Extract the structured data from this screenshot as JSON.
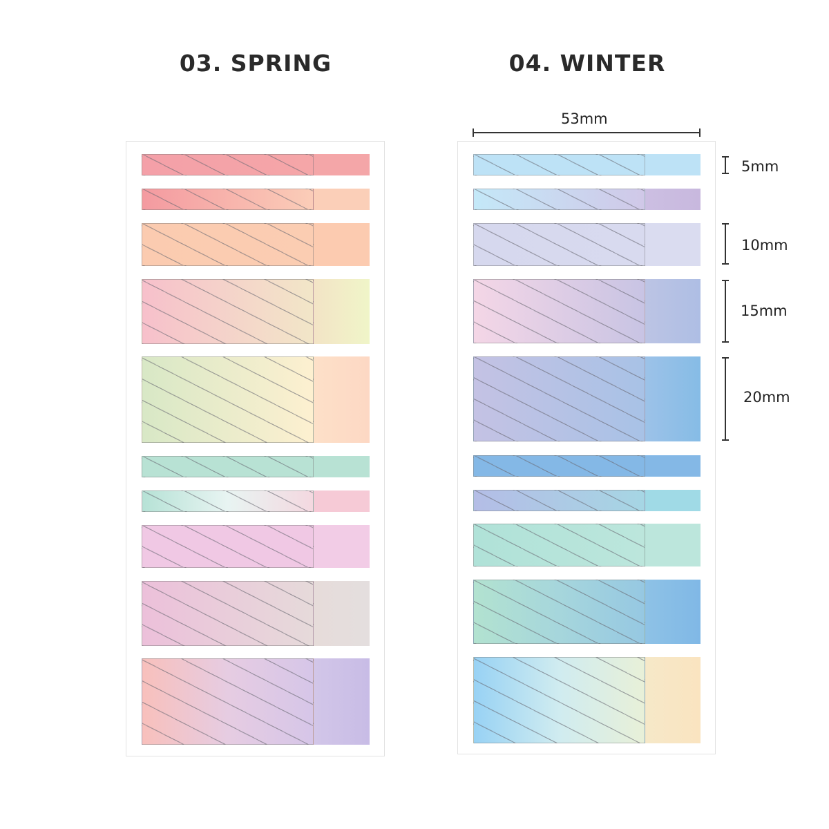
{
  "sets": [
    {
      "title": "03. SPRING",
      "tabs": [
        {
          "stripe": [
            "#f4a0a8",
            "#f5a6a8"
          ],
          "plain": [
            "#f4a6a8",
            "#f4a6a8"
          ]
        },
        {
          "stripe": [
            "#f49aa0",
            "#fbcdb8"
          ],
          "plain": [
            "#fbcfb8",
            "#fbcfb8"
          ]
        },
        {
          "stripe": [
            "#fbcbb0",
            "#fbcdb2"
          ],
          "plain": [
            "#fccbb0",
            "#fccbb0"
          ]
        },
        {
          "stripe": [
            "#f7c0cb",
            "#f2e6c8"
          ],
          "plain": [
            "#f3e4c6",
            "#f0f5c8"
          ]
        },
        {
          "stripe": [
            "#d8e8c6",
            "#fdf0d0"
          ],
          "plain": [
            "#fde0c8",
            "#fdd8c4"
          ]
        },
        {
          "stripe": [
            "#b8e2d4",
            "#b8e2d4"
          ],
          "plain": [
            "#b8e2d4",
            "#b8e2d4"
          ]
        },
        {
          "stripe": [
            "#b6e2d6",
            "#e8f4f2",
            "#f4d8e0"
          ],
          "plain": [
            "#f6cad6",
            "#f6cad6"
          ]
        },
        {
          "stripe": [
            "#f0c8e4",
            "#f0c8e4"
          ],
          "plain": [
            "#f2cce6",
            "#f2cce6"
          ]
        },
        {
          "stripe": [
            "#ecc0da",
            "#e6dada"
          ],
          "plain": [
            "#e6dcda",
            "#e4dede"
          ]
        },
        {
          "stripe": [
            "#f8c0bc",
            "#e6cce2",
            "#d6c6e8"
          ],
          "plain": [
            "#d2c6e8",
            "#c8bce6"
          ]
        }
      ]
    },
    {
      "title": "04. WINTER",
      "tabs": [
        {
          "stripe": [
            "#bde2f6",
            "#bde2f6"
          ],
          "plain": [
            "#bde2f6",
            "#bde2f6"
          ]
        },
        {
          "stripe": [
            "#c4e8f8",
            "#d0c8e8"
          ],
          "plain": [
            "#ccbfe2",
            "#c8b8de"
          ]
        },
        {
          "stripe": [
            "#d6d8ee",
            "#d8daef"
          ],
          "plain": [
            "#dadcf0",
            "#dadcf0"
          ]
        },
        {
          "stripe": [
            "#f4d6e6",
            "#c8c4e4"
          ],
          "plain": [
            "#bcc4e4",
            "#aebee4"
          ]
        },
        {
          "stripe": [
            "#c4c2e4",
            "#a8c2e6"
          ],
          "plain": [
            "#9cc2e8",
            "#86bce6"
          ]
        },
        {
          "stripe": [
            "#84b8e6",
            "#84b8e6"
          ],
          "plain": [
            "#84b8e6",
            "#84b8e6"
          ]
        },
        {
          "stripe": [
            "#b4bde6",
            "#a6d6e4"
          ],
          "plain": [
            "#a0dae6",
            "#a0dae6"
          ]
        },
        {
          "stripe": [
            "#b0e2d8",
            "#bce6dc"
          ],
          "plain": [
            "#bce6dc",
            "#bce6dc"
          ]
        },
        {
          "stripe": [
            "#b2e2d0",
            "#a6d6dc",
            "#96c8e2"
          ],
          "plain": [
            "#8ec2e6",
            "#80b8e6"
          ]
        },
        {
          "stripe": [
            "#98d2f4",
            "#d0ecf0",
            "#e8f0d8"
          ],
          "plain": [
            "#f6e8c8",
            "#fae4c0"
          ]
        }
      ]
    }
  ],
  "dimensions": {
    "width": "53mm",
    "heights": [
      "5mm",
      "10mm",
      "15mm",
      "20mm"
    ]
  }
}
